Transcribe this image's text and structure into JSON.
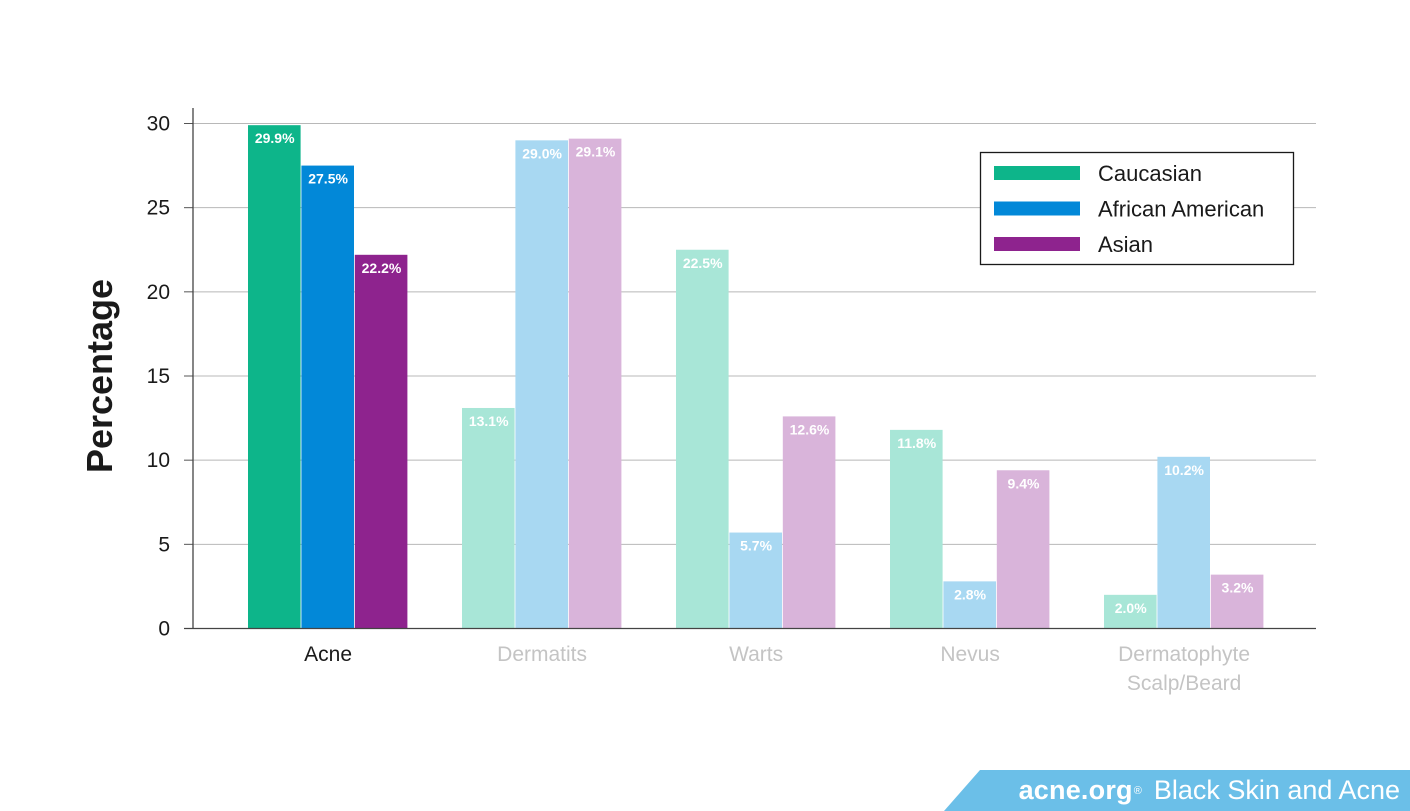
{
  "chart_data": {
    "type": "bar",
    "categories": [
      "Acne",
      "Dermatits",
      "Warts",
      "Nevus",
      "Dermatophyte\nScalp/Beard"
    ],
    "highlighted_category": "Acne",
    "series": [
      {
        "name": "Caucasian",
        "values": [
          29.9,
          13.1,
          22.5,
          11.8,
          2.0
        ],
        "labels": [
          "29.9%",
          "13.1%",
          "22.5%",
          "11.8%",
          "2.0%"
        ]
      },
      {
        "name": "African American",
        "values": [
          27.5,
          29.0,
          5.7,
          2.8,
          10.2
        ],
        "labels": [
          "27.5%",
          "29.0%",
          "5.7%",
          "2.8%",
          "10.2%"
        ]
      },
      {
        "name": "Asian",
        "values": [
          22.2,
          29.1,
          12.6,
          9.4,
          3.2
        ],
        "labels": [
          "22.2%",
          "29.1%",
          "12.6%",
          "9.4%",
          "3.2%"
        ]
      }
    ],
    "title": "",
    "xlabel": "",
    "ylabel": "Percentage",
    "ylim": [
      0,
      30
    ],
    "yticks": [
      0,
      5,
      10,
      15,
      20,
      25,
      30
    ],
    "grid": true,
    "legend_position": "top-right",
    "colors": {
      "full": [
        "#0db58a",
        "#0288d8",
        "#8e238e"
      ],
      "muted": [
        "#a8e6d7",
        "#a8d8f2",
        "#d9b4da"
      ],
      "category_label_active": "#1a1a1a",
      "category_label_muted": "#c4c4c4"
    }
  },
  "brand": {
    "logo": "acne.org",
    "registered_mark": "®",
    "tagline": "Black Skin and Acne",
    "color": "#6bbfe8"
  }
}
